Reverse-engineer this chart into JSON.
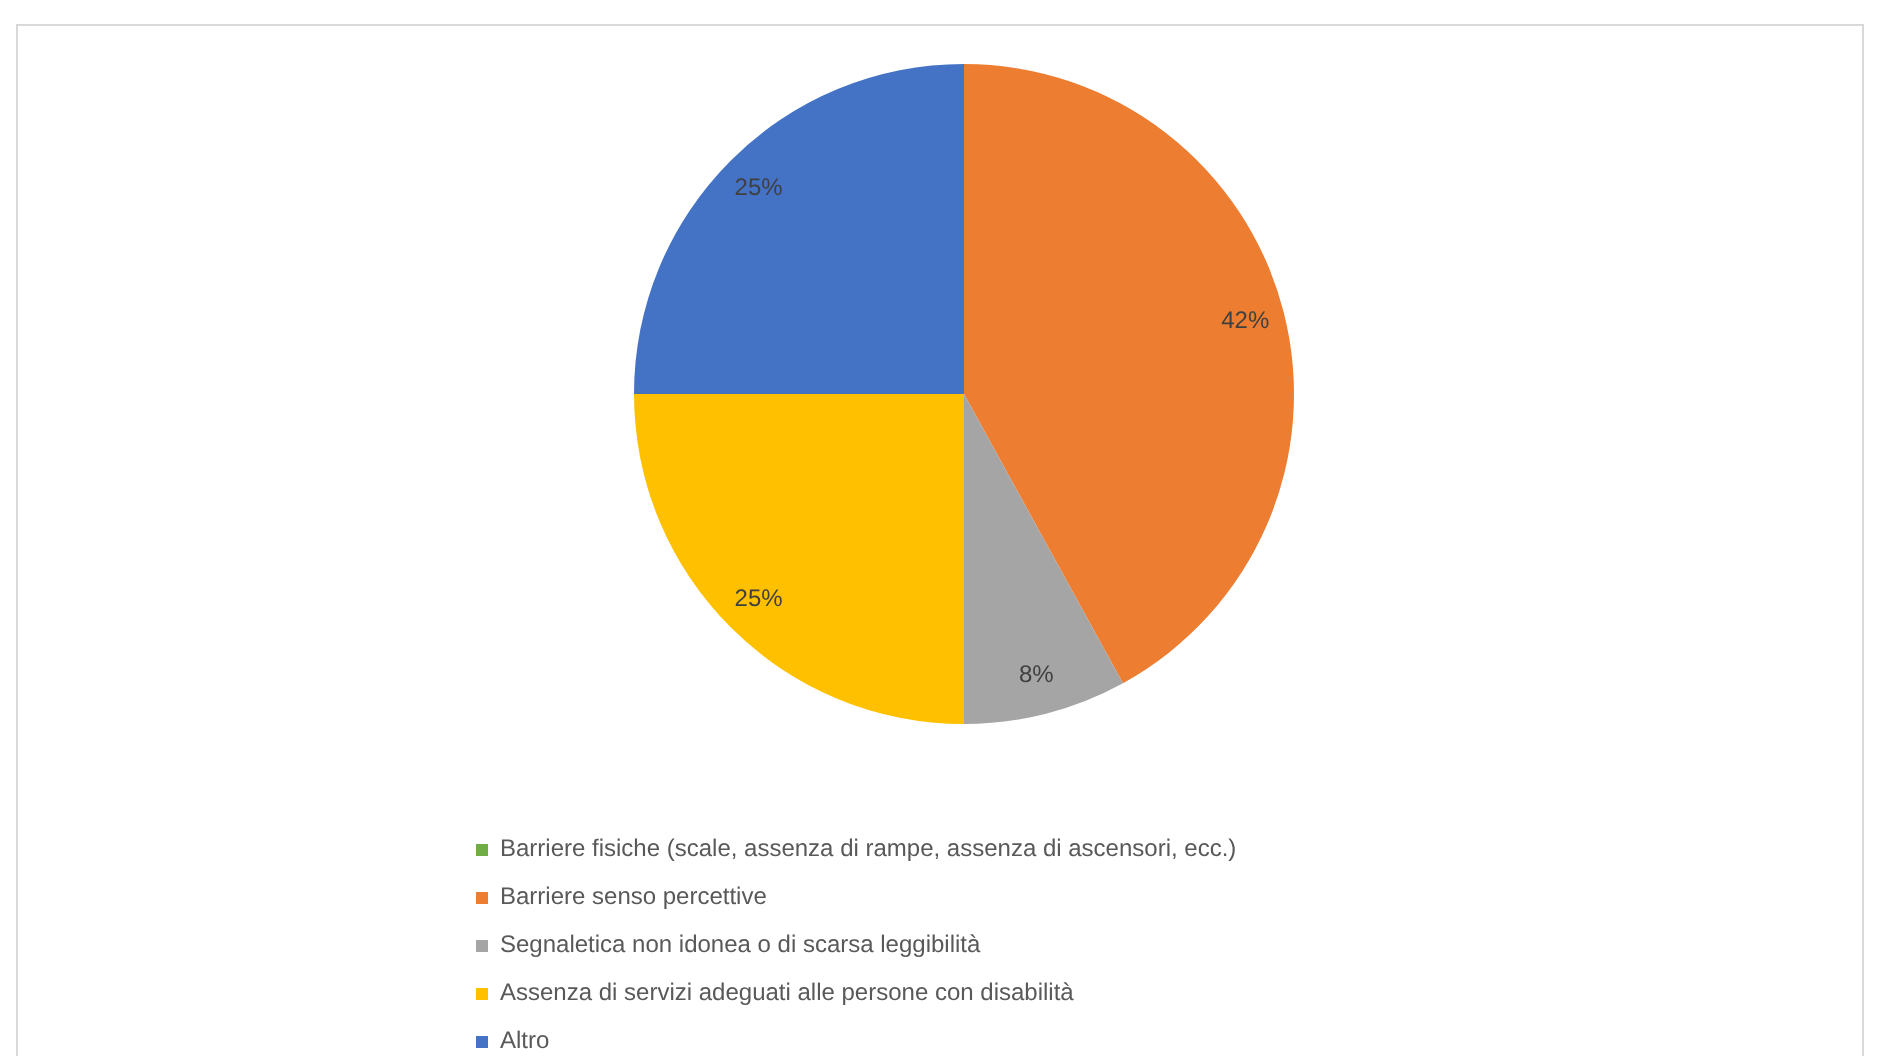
{
  "chart_data": {
    "type": "pie",
    "categories": [
      "Barriere fisiche (scale, assenza di rampe, assenza di ascensori, ecc.)",
      "Barriere senso percettive",
      "Segnaletica non idonea o di scarsa leggibilità",
      "Assenza di servizi adeguati alle persone con disabilità",
      "Altro"
    ],
    "values": [
      0,
      42,
      8,
      25,
      25
    ],
    "colors": [
      "#70ad47",
      "#ed7d31",
      "#a5a5a5",
      "#ffc000",
      "#4472c4"
    ],
    "value_labels": [
      null,
      "42%",
      "8%",
      "25%",
      "25%"
    ],
    "legend": "bottom"
  }
}
